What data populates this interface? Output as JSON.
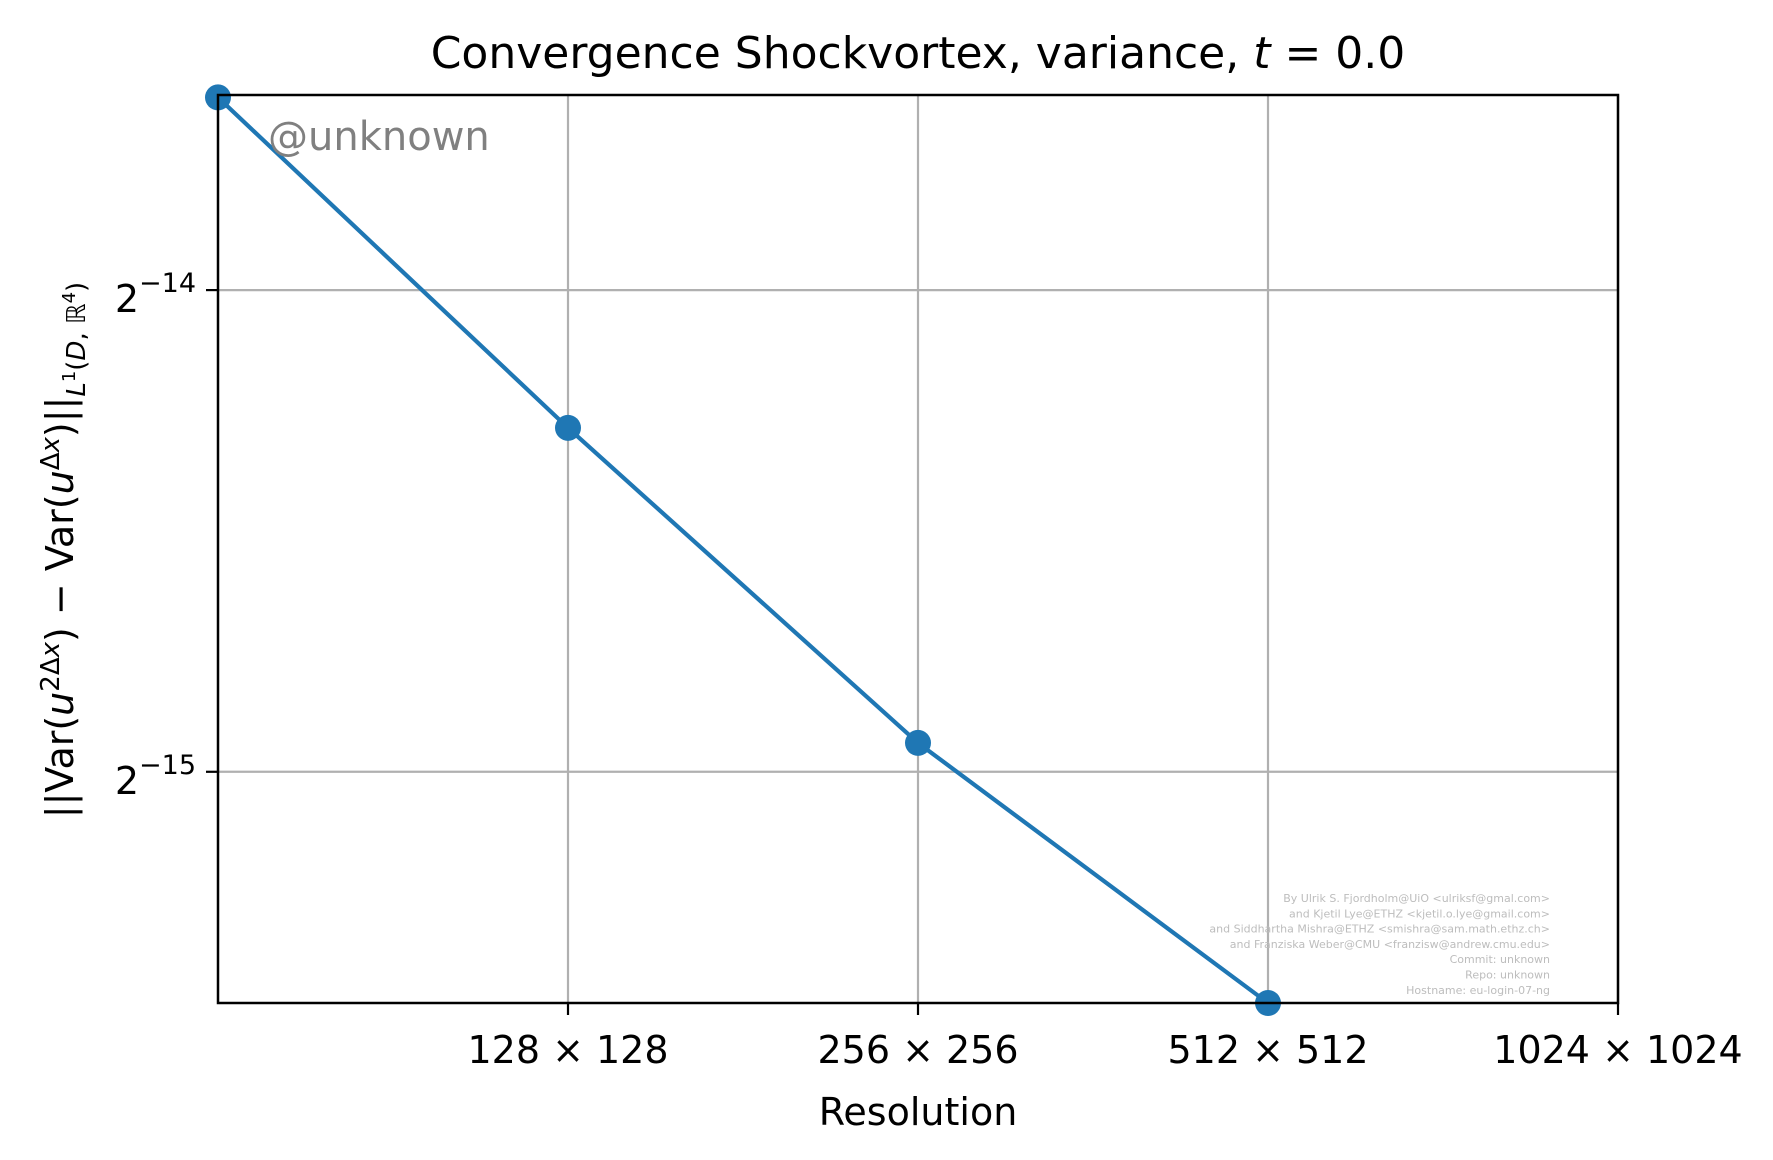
{
  "chart_data": {
    "type": "line",
    "title": "Convergence Shockvortex, variance, t = 0.0",
    "xlabel": "Resolution",
    "ylabel": "||Var(u^{2Δx}) − Var(u^{Δx})||_{L¹(D, ℝ⁴)}",
    "x_scale": "log2",
    "y_scale": "log2",
    "x_ticks": [
      {
        "value": 128,
        "label": "128 × 128"
      },
      {
        "value": 256,
        "label": "256 × 256"
      },
      {
        "value": 512,
        "label": "512 × 512"
      },
      {
        "value": 1024,
        "label": "1024 × 1024"
      }
    ],
    "y_ticks": [
      {
        "exponent": -14,
        "base": "2",
        "sup": "−14"
      },
      {
        "exponent": -15,
        "base": "2",
        "sup": "−15"
      }
    ],
    "xlim": [
      64,
      1024
    ],
    "ylim_log2": [
      -15.48,
      -13.595
    ],
    "grid": true,
    "series": [
      {
        "color": "#1f77b4",
        "x": [
          64,
          128,
          256,
          512
        ],
        "y_log2": [
          -13.6,
          -14.286,
          -14.94,
          -15.48
        ]
      }
    ]
  },
  "watermark": "@unknown",
  "credits": [
    "By Ulrik S. Fjordholm@UiO <ulriksf@gmal.com>",
    "and Kjetil Lye@ETHZ <kjetil.o.lye@gmail.com>",
    "and Siddhartha Mishra@ETHZ <smishra@sam.math.ethz.ch>",
    "and Franziska Weber@CMU <franzisw@andrew.cmu.edu>",
    "Commit: unknown",
    "Repo: unknown",
    "Hostname: eu-login-07-ng"
  ]
}
